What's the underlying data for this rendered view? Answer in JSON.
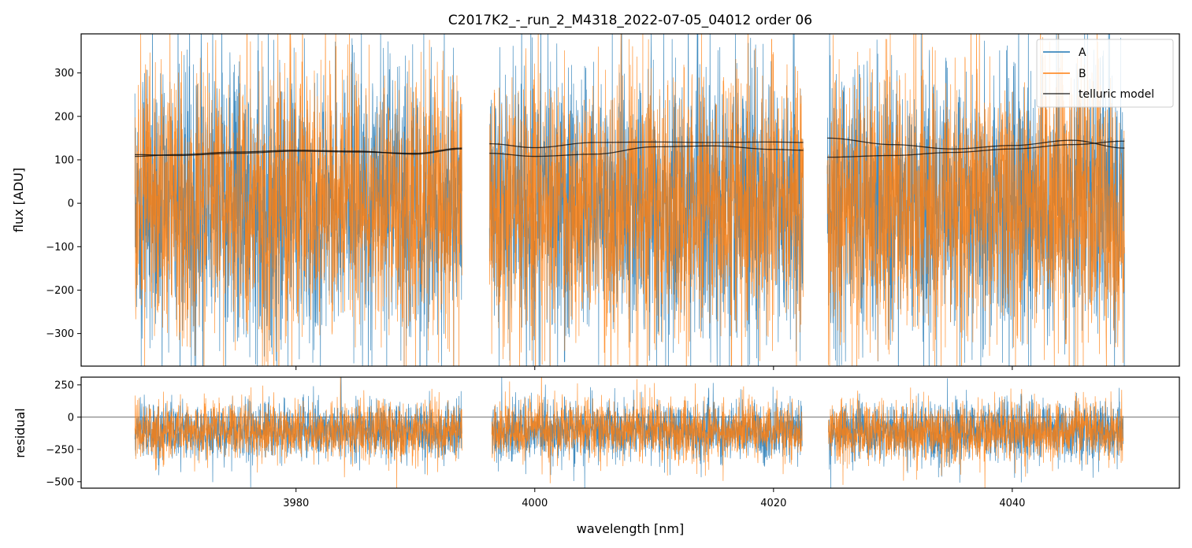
{
  "title": "C2017K2_-_run_2_M4318_2022-07-05_04012  order 06",
  "colors": {
    "A": "#1f77b4",
    "B": "#ff7f0e",
    "telluric": "#000000"
  },
  "chart_data": [
    {
      "type": "line",
      "panel": "flux",
      "ylabel": "flux [ADU]",
      "xlabel": "",
      "xlim": [
        3962,
        4054
      ],
      "ylim": [
        -375,
        390
      ],
      "yticks": [
        -300,
        -200,
        -100,
        0,
        100,
        200,
        300
      ],
      "xticks": [
        3980,
        4000,
        4020,
        4040
      ],
      "segments": [
        [
          3966.5,
          3993.9
        ],
        [
          3996.2,
          4022.5
        ],
        [
          4024.5,
          4049.4
        ]
      ],
      "noise_sigma": 155,
      "legend": {
        "position": "top-right",
        "entries": [
          "A",
          "B",
          "telluric model"
        ]
      },
      "series": [
        {
          "name": "A",
          "color": "#1f77b4",
          "style": "noisy spectrum",
          "mean_approx": 0
        },
        {
          "name": "B",
          "color": "#ff7f0e",
          "style": "noisy spectrum",
          "mean_approx": 0
        },
        {
          "name": "telluric model",
          "color": "#000000",
          "curves": [
            {
              "segment": 0,
              "x": [
                3966.5,
                3970,
                3975,
                3980,
                3985,
                3990,
                3993.9
              ],
              "y": [
                112,
                110,
                115,
                120,
                118,
                115,
                127
              ]
            },
            {
              "segment": 0,
              "x": [
                3966.5,
                3970,
                3975,
                3980,
                3985,
                3990,
                3993.9
              ],
              "y": [
                108,
                112,
                118,
                122,
                120,
                113,
                125
              ]
            },
            {
              "segment": 1,
              "x": [
                3996.2,
                4000,
                4005,
                4010,
                4015,
                4020,
                4022.5
              ],
              "y": [
                137,
                128,
                140,
                141,
                140,
                141,
                140
              ]
            },
            {
              "segment": 1,
              "x": [
                3996.2,
                4000,
                4005,
                4010,
                4015,
                4020,
                4022.5
              ],
              "y": [
                115,
                108,
                113,
                130,
                132,
                124,
                122
              ]
            },
            {
              "segment": 2,
              "x": [
                4024.5,
                4030,
                4035,
                4040,
                4045,
                4049.4
              ],
              "y": [
                150,
                135,
                125,
                133,
                145,
                127
              ]
            },
            {
              "segment": 2,
              "x": [
                4024.5,
                4030,
                4035,
                4040,
                4045,
                4049.4
              ],
              "y": [
                106,
                110,
                117,
                125,
                135,
                143
              ]
            }
          ]
        }
      ]
    },
    {
      "type": "line",
      "panel": "residual",
      "ylabel": "residual",
      "xlabel": "wavelength [nm]",
      "xlim": [
        3962,
        4054
      ],
      "ylim": [
        -550,
        310
      ],
      "yticks": [
        -500,
        -250,
        0,
        250
      ],
      "xticks": [
        3980,
        4000,
        4020,
        4040
      ],
      "segments": [
        [
          3966.5,
          3993.9
        ],
        [
          3996.4,
          4022.4
        ],
        [
          4024.6,
          4049.3
        ]
      ],
      "noise_sigma": 110,
      "zero_line": true,
      "series": [
        {
          "name": "A",
          "color": "#1f77b4",
          "style": "noisy residual",
          "mean_approx": -110
        },
        {
          "name": "B",
          "color": "#ff7f0e",
          "style": "noisy residual",
          "mean_approx": -110
        }
      ]
    }
  ]
}
